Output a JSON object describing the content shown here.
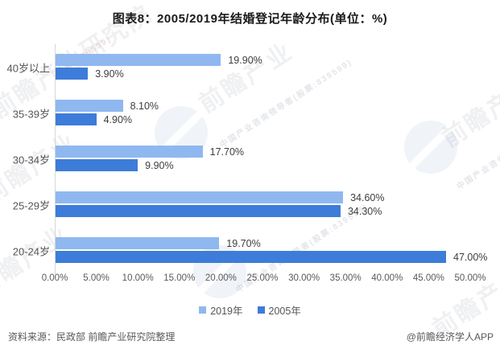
{
  "title": "图表8：2005/2019年结婚登记年龄分布(单位：%)",
  "chart_data": {
    "type": "bar",
    "orientation": "horizontal",
    "title": "图表8：2005/2019年结婚登记年龄分布(单位：%)",
    "categories": [
      "40岁以上",
      "35-39岁",
      "30-34岁",
      "25-29岁",
      "20-24岁"
    ],
    "series": [
      {
        "name": "2019年",
        "color": "#8FB8F0",
        "values": [
          19.9,
          8.1,
          17.7,
          34.6,
          19.7
        ],
        "labels": [
          "19.90%",
          "8.10%",
          "17.70%",
          "34.60%",
          "19.70%"
        ]
      },
      {
        "name": "2005年",
        "color": "#3D7CD9",
        "values": [
          3.9,
          4.9,
          9.9,
          34.3,
          47.0
        ],
        "labels": [
          "3.90%",
          "4.90%",
          "9.90%",
          "34.30%",
          "47.00%"
        ]
      }
    ],
    "xlabel": "",
    "ylabel": "",
    "xlim": [
      0,
      50
    ],
    "x_ticks": [
      "0.00%",
      "5.00%",
      "10.00%",
      "15.00%",
      "20.00%",
      "25.00%",
      "30.00%",
      "35.00%",
      "40.00%",
      "45.00%",
      "50.00%"
    ],
    "grid": false,
    "legend_position": "bottom"
  },
  "footer": {
    "source": "资料来源：民政部 前瞻产业研究院整理",
    "credit": "@前瞻经济学人APP"
  },
  "watermarks": {
    "brand": "前瞻产业研究院",
    "brand_short": "前瞻产业",
    "tagline": "中国产业咨询领导者(股票:839599)",
    "stock": "(股票:839599)"
  },
  "colors": {
    "series_2019": "#8FB8F0",
    "series_2005": "#3D7CD9",
    "axis_line": "#d6d6d6",
    "tick_text": "#595959",
    "title_text": "#1a1a1a"
  }
}
